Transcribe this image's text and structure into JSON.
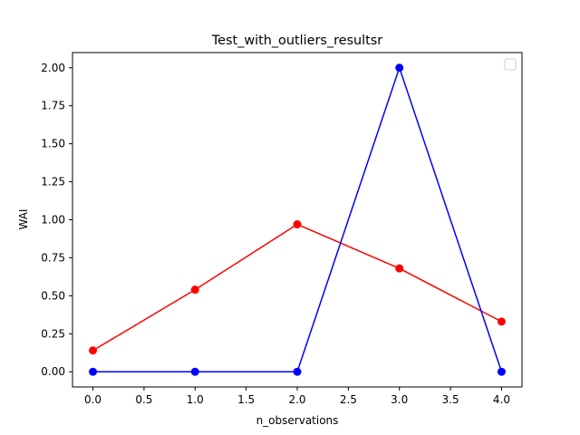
{
  "chart_data": {
    "type": "line",
    "title": "Test_with_outliers_resultsr",
    "xlabel": "n_observations",
    "ylabel": "WAI",
    "x": [
      0,
      1,
      2,
      3,
      4
    ],
    "xlim": [
      -0.2,
      4.2
    ],
    "ylim": [
      -0.1,
      2.1
    ],
    "xticks": [
      0.0,
      0.5,
      1.0,
      1.5,
      2.0,
      2.5,
      3.0,
      3.5,
      4.0
    ],
    "xtick_labels": [
      "0.0",
      "0.5",
      "1.0",
      "1.5",
      "2.0",
      "2.5",
      "3.0",
      "3.5",
      "4.0"
    ],
    "yticks": [
      0.0,
      0.25,
      0.5,
      0.75,
      1.0,
      1.25,
      1.5,
      1.75,
      2.0
    ],
    "ytick_labels": [
      "0.00",
      "0.25",
      "0.50",
      "0.75",
      "1.00",
      "1.25",
      "1.50",
      "1.75",
      "2.00"
    ],
    "grid": false,
    "legend": "top-right (empty)",
    "series": [
      {
        "color": "#ff0000",
        "marker": "circle",
        "values": [
          0.14,
          0.54,
          0.97,
          0.68,
          0.33
        ]
      },
      {
        "color": "#0000ff",
        "marker": "circle",
        "values": [
          0.0,
          0.0,
          0.0,
          2.0,
          0.0
        ]
      }
    ]
  }
}
